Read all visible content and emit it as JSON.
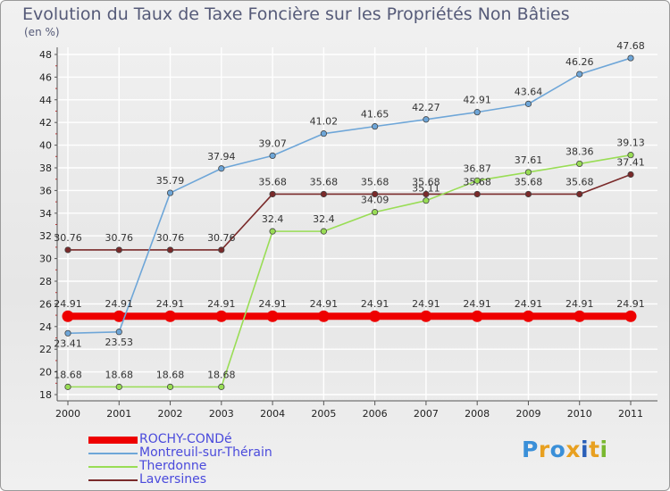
{
  "chart_data": {
    "type": "line",
    "title": "Evolution du Taux de Taxe Foncière sur les Propriétés Non Bâties",
    "subtitle": "(en %)",
    "x": [
      "2000",
      "2001",
      "2002",
      "2003",
      "2004",
      "2005",
      "2006",
      "2007",
      "2008",
      "2009",
      "2010",
      "2011"
    ],
    "ylim": [
      18,
      48
    ],
    "yticks": [
      18,
      20,
      22,
      24,
      26,
      28,
      30,
      32,
      34,
      36,
      38,
      40,
      42,
      44,
      46,
      48
    ],
    "grid": true,
    "legend_position": "bottom-left",
    "series": [
      {
        "name": "ROCHY-CONDé",
        "color": "#ee0000",
        "thick": true,
        "values": [
          24.91,
          24.91,
          24.91,
          24.91,
          24.91,
          24.91,
          24.91,
          24.91,
          24.91,
          24.91,
          24.91,
          24.91
        ],
        "labels": [
          "24.91",
          "24.91",
          "24.91",
          "24.91",
          "24.91",
          "24.91",
          "24.91",
          "24.91",
          "24.91",
          "24.91",
          "24.91",
          "24.91"
        ]
      },
      {
        "name": "Montreuil-sur-Thérain",
        "color": "#6ea6d8",
        "values": [
          23.41,
          23.53,
          35.79,
          37.94,
          39.07,
          41.02,
          41.65,
          42.27,
          42.91,
          43.64,
          46.26,
          47.68
        ],
        "labels": [
          "23.41",
          "23.53",
          "35.79",
          "37.94",
          "39.07",
          "41.02",
          "41.65",
          "42.27",
          "42.91",
          "43.64",
          "46.26",
          "47.68"
        ]
      },
      {
        "name": "Therdonne",
        "color": "#99dd55",
        "values": [
          18.68,
          18.68,
          18.68,
          18.68,
          32.4,
          32.4,
          34.09,
          35.11,
          36.87,
          37.61,
          38.36,
          39.13
        ],
        "labels": [
          "18.68",
          "18.68",
          "18.68",
          "18.68",
          "32.4",
          "32.4",
          "34.09",
          "35.11",
          "36.87",
          "37.61",
          "38.36",
          "39.13"
        ]
      },
      {
        "name": "Laversines",
        "color": "#7a2a2a",
        "values": [
          30.76,
          30.76,
          30.76,
          30.76,
          35.68,
          35.68,
          35.68,
          35.68,
          35.68,
          35.68,
          35.68,
          37.41
        ],
        "labels": [
          "30.76",
          "30.76",
          "30.76",
          "30.76",
          "35.68",
          "35.68",
          "35.68",
          "35.68",
          "35.68",
          "35.68",
          "35.68",
          "37.41"
        ]
      }
    ]
  },
  "legend": {
    "items": [
      {
        "label": "ROCHY-CONDé",
        "color": "#ee0000"
      },
      {
        "label": "Montreuil-sur-Thérain",
        "color": "#6ea6d8"
      },
      {
        "label": "Therdonne",
        "color": "#99dd55"
      },
      {
        "label": "Laversines",
        "color": "#7a2a2a"
      }
    ],
    "text_color": "#4a4adc"
  },
  "logo": {
    "text": "Proxiti",
    "letters": [
      {
        "ch": "P",
        "color": "#3a8fd8"
      },
      {
        "ch": "r",
        "color": "#e8a020"
      },
      {
        "ch": "o",
        "color": "#3a8fd8"
      },
      {
        "ch": "x",
        "color": "#e8a020"
      },
      {
        "ch": "i",
        "color": "#2a5fb8"
      },
      {
        "ch": "t",
        "color": "#e8a020"
      },
      {
        "ch": "i",
        "color": "#7ab830"
      }
    ]
  }
}
